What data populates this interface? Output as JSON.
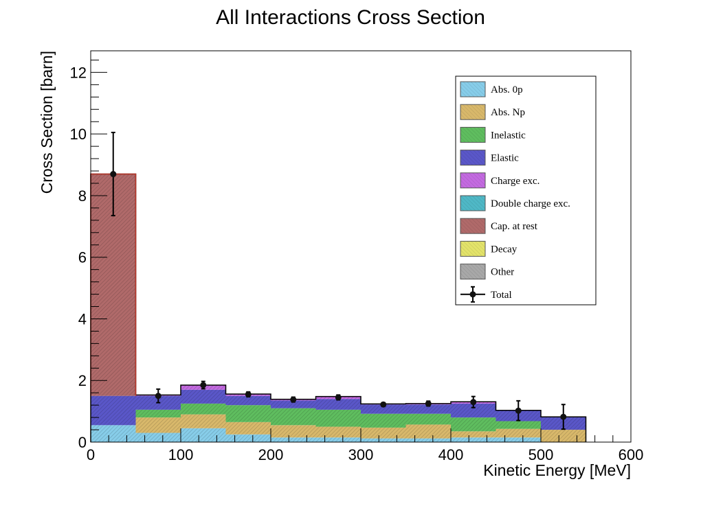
{
  "chart_data": {
    "type": "bar",
    "stacked": true,
    "title": "All Interactions Cross Section",
    "xlabel": "Kinetic Energy [MeV]",
    "ylabel": "Cross Section [barn]",
    "xlim": [
      0,
      600
    ],
    "ylim": [
      0,
      12.7
    ],
    "x_ticks": [
      0,
      100,
      200,
      300,
      400,
      500,
      600
    ],
    "y_ticks": [
      0,
      2,
      4,
      6,
      8,
      10,
      12
    ],
    "grid": false,
    "legend_position": "top-right",
    "bin_edges": [
      0,
      50,
      100,
      150,
      200,
      250,
      300,
      350,
      400,
      450,
      500,
      550
    ],
    "series": [
      {
        "name": "Abs. 0p",
        "color": "#87cde9",
        "values": [
          0.55,
          0.3,
          0.45,
          0.25,
          0.15,
          0.15,
          0.12,
          0.12,
          0.15,
          0.15,
          0.0
        ]
      },
      {
        "name": "Abs. Np",
        "color": "#d8b86b",
        "values": [
          0.0,
          0.5,
          0.45,
          0.4,
          0.4,
          0.35,
          0.35,
          0.45,
          0.2,
          0.28,
          0.4
        ]
      },
      {
        "name": "Inelastic",
        "color": "#5fbd5f",
        "values": [
          0.0,
          0.25,
          0.35,
          0.55,
          0.55,
          0.55,
          0.45,
          0.35,
          0.45,
          0.25,
          0.0
        ]
      },
      {
        "name": "Elastic",
        "color": "#5a57c8",
        "values": [
          0.95,
          0.45,
          0.45,
          0.3,
          0.25,
          0.35,
          0.3,
          0.3,
          0.45,
          0.35,
          0.42
        ]
      },
      {
        "name": "Charge exc.",
        "color": "#c36ae0",
        "values": [
          0.0,
          0.03,
          0.15,
          0.06,
          0.04,
          0.08,
          0.02,
          0.03,
          0.06,
          0.0,
          0.0
        ]
      },
      {
        "name": "Double charge exc.",
        "color": "#4fb8c6",
        "values": [
          0.0,
          0.0,
          0.0,
          0.0,
          0.0,
          0.0,
          0.0,
          0.0,
          0.0,
          0.0,
          0.0
        ]
      },
      {
        "name": "Cap. at rest",
        "color": "#b06a6a",
        "values": [
          7.2,
          0.0,
          0.0,
          0.0,
          0.0,
          0.0,
          0.0,
          0.0,
          0.0,
          0.0,
          0.0
        ]
      },
      {
        "name": "Decay",
        "color": "#e3e36a",
        "values": [
          0.0,
          0.0,
          0.0,
          0.0,
          0.0,
          0.0,
          0.0,
          0.0,
          0.0,
          0.0,
          0.0
        ]
      },
      {
        "name": "Other",
        "color": "#a8a8a8",
        "values": [
          0.0,
          0.0,
          0.0,
          0.0,
          0.0,
          0.0,
          0.0,
          0.0,
          0.0,
          0.0,
          0.0
        ]
      }
    ],
    "total": {
      "name": "Total",
      "x": [
        25,
        75,
        125,
        175,
        225,
        275,
        325,
        375,
        425,
        475,
        525
      ],
      "y": [
        8.7,
        1.5,
        1.85,
        1.55,
        1.38,
        1.45,
        1.22,
        1.25,
        1.3,
        1.02,
        0.82
      ],
      "err": [
        1.35,
        0.22,
        0.12,
        0.08,
        0.08,
        0.08,
        0.06,
        0.08,
        0.18,
        0.32,
        0.4
      ]
    },
    "stack_outline_color": "#000000"
  }
}
